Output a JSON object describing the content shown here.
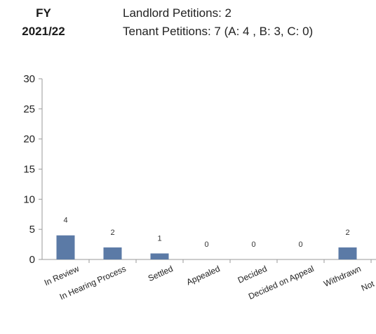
{
  "header": {
    "fiscal_year_label": "FY",
    "fiscal_year_value": "2021/22",
    "landlord_petitions": "Landlord Petitions: 2",
    "tenant_petitions": "Tenant Petitions: 7 (A: 4 , B: 3, C: 0)"
  },
  "chart_data": {
    "type": "bar",
    "categories": [
      "In Review",
      "In Hearing Process",
      "Settled",
      "Appealed",
      "Decided",
      "Decided on Appeal",
      "Withdrawn",
      "Not Accepted"
    ],
    "values": [
      4,
      2,
      1,
      0,
      0,
      0,
      2,
      0
    ],
    "data_labels": [
      "4",
      "2",
      "1",
      "0",
      "0",
      "0",
      "2",
      ""
    ],
    "yticks": [
      "0",
      "5",
      "10",
      "15",
      "20",
      "25",
      "30"
    ],
    "ylim": [
      0,
      30
    ],
    "grid": false,
    "legend": "none",
    "bar_color": "#5b7aa6"
  }
}
